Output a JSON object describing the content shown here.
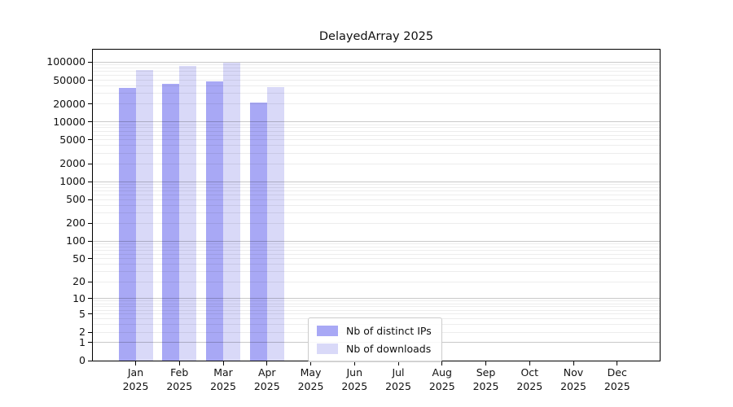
{
  "colors": {
    "bar_distinct_ips": "#a8a8f5",
    "bar_downloads": "#d9d9f8",
    "grid_major": "#c9c9c9",
    "grid_minor": "#ededed",
    "axis": "#000000",
    "legend_border": "#cccccc",
    "background": "#ffffff",
    "text": "#111111"
  },
  "chart_data": {
    "type": "bar",
    "title": "DelayedArray 2025",
    "categories": [
      "Jan",
      "Feb",
      "Mar",
      "Apr",
      "May",
      "Jun",
      "Jul",
      "Aug",
      "Sep",
      "Oct",
      "Nov",
      "Dec"
    ],
    "year_label": "2025",
    "series": [
      {
        "name": "Nb of distinct IPs",
        "color": "#a8a8f5",
        "values": [
          37000,
          43000,
          48000,
          21000,
          null,
          null,
          null,
          null,
          null,
          null,
          null,
          null
        ]
      },
      {
        "name": "Nb of downloads",
        "color": "#d9d9f8",
        "values": [
          75000,
          86000,
          98000,
          38000,
          null,
          null,
          null,
          null,
          null,
          null,
          null,
          null
        ]
      }
    ],
    "y_scale": "log10(1+y)",
    "y_ticks": [
      0,
      1,
      2,
      5,
      10,
      20,
      50,
      100,
      200,
      500,
      1000,
      2000,
      5000,
      10000,
      20000,
      50000,
      100000
    ],
    "grid": {
      "orientation": "horizontal",
      "major_decades": [
        1,
        10,
        100,
        1000,
        10000,
        100000
      ],
      "minor": "multiples 2-9 of each decade"
    },
    "legend_position": "bottom-center-inside"
  }
}
